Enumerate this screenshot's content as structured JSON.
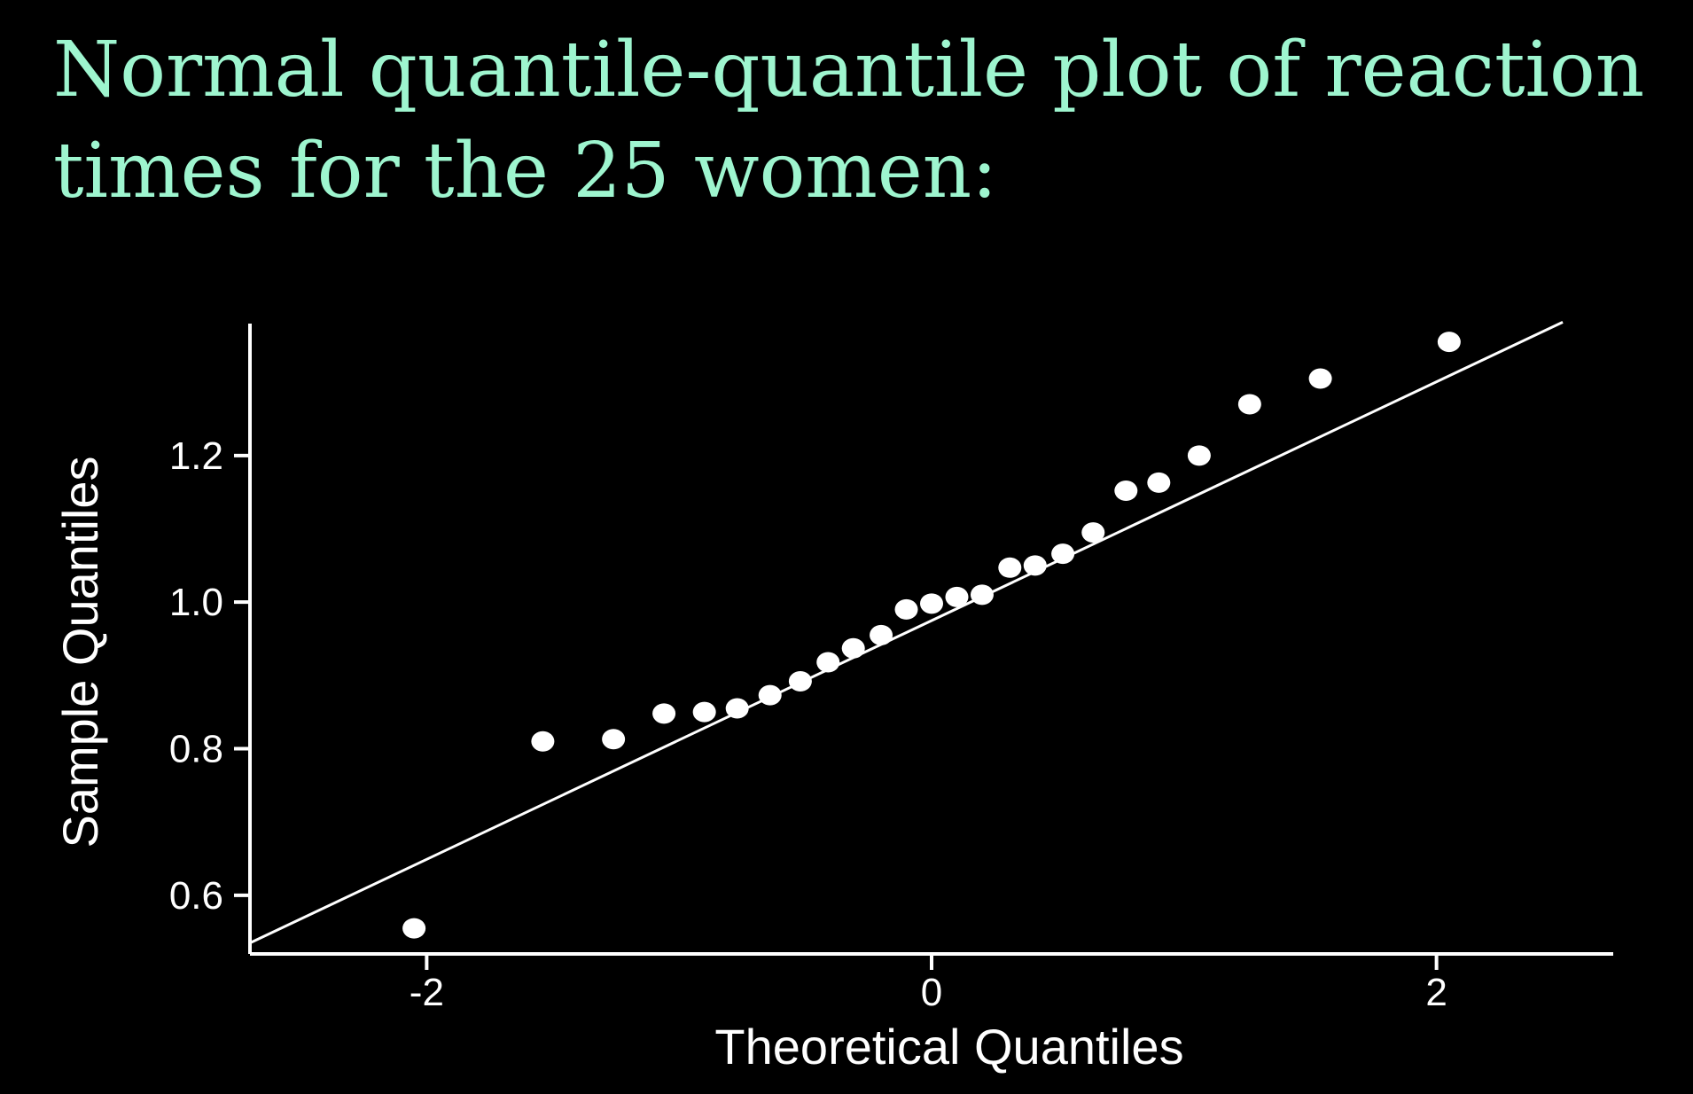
{
  "title": {
    "line1": "Normal quantile-quantile plot of reaction",
    "line2": "times for the 25 women:"
  },
  "colors": {
    "background": "#000000",
    "title": "#9ef5cf",
    "plot": "#ffffff"
  },
  "chart_data": {
    "type": "scatter",
    "xlabel": "Theoretical Quantiles",
    "ylabel": "Sample Quantiles",
    "xlim": [
      -2.7,
      2.7
    ],
    "ylim": [
      0.52,
      1.38
    ],
    "xticks": [
      -2,
      0,
      2
    ],
    "xtick_labels": [
      "-2",
      "0",
      "2"
    ],
    "yticks": [
      0.6,
      0.8,
      1.0,
      1.2
    ],
    "ytick_labels": [
      "0.6",
      "0.8",
      "1.0",
      "1.2"
    ],
    "grid": false,
    "points": [
      {
        "x": -2.05,
        "y": 0.555
      },
      {
        "x": -1.54,
        "y": 0.81
      },
      {
        "x": -1.26,
        "y": 0.813
      },
      {
        "x": -1.06,
        "y": 0.848
      },
      {
        "x": -0.9,
        "y": 0.85
      },
      {
        "x": -0.77,
        "y": 0.855
      },
      {
        "x": -0.64,
        "y": 0.873
      },
      {
        "x": -0.52,
        "y": 0.892
      },
      {
        "x": -0.41,
        "y": 0.918
      },
      {
        "x": -0.31,
        "y": 0.937
      },
      {
        "x": -0.2,
        "y": 0.955
      },
      {
        "x": -0.1,
        "y": 0.99
      },
      {
        "x": 0.0,
        "y": 0.998
      },
      {
        "x": 0.1,
        "y": 1.007
      },
      {
        "x": 0.2,
        "y": 1.01
      },
      {
        "x": 0.31,
        "y": 1.047
      },
      {
        "x": 0.41,
        "y": 1.05
      },
      {
        "x": 0.52,
        "y": 1.066
      },
      {
        "x": 0.64,
        "y": 1.095
      },
      {
        "x": 0.77,
        "y": 1.152
      },
      {
        "x": 0.9,
        "y": 1.163
      },
      {
        "x": 1.06,
        "y": 1.2
      },
      {
        "x": 1.26,
        "y": 1.27
      },
      {
        "x": 1.54,
        "y": 1.305
      },
      {
        "x": 2.05,
        "y": 1.355
      }
    ],
    "reference_line": {
      "from": {
        "x": -2.7,
        "y": 0.535
      },
      "to": {
        "x": 2.5,
        "y": 1.382
      }
    }
  }
}
